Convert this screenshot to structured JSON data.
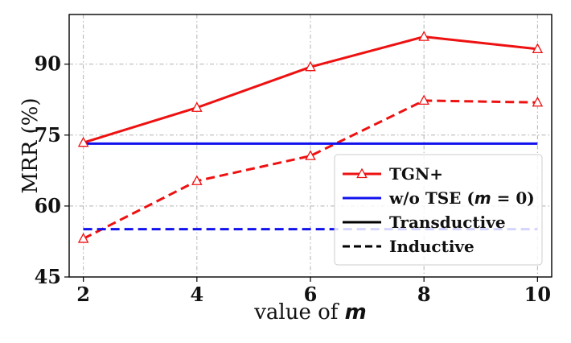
{
  "chart_data": {
    "type": "line",
    "xlabel": "value of ",
    "xlabel_var": "m",
    "ylabel": "MRR (%)",
    "x": [
      2,
      4,
      6,
      8,
      10
    ],
    "xticks": [
      "2",
      "4",
      "6",
      "8",
      "10"
    ],
    "yticks": [
      "45",
      "60",
      "75",
      "90"
    ],
    "xlim": [
      1.75,
      10.25
    ],
    "ylim": [
      45,
      100.5
    ],
    "grid": true,
    "legend_position": "bottom-right",
    "series": [
      {
        "name": "TGN+ (Transductive)",
        "values": [
          73.4,
          80.8,
          89.4,
          95.8,
          93.2
        ],
        "color": "#ee1111",
        "dash": "solid",
        "marker": "triangle"
      },
      {
        "name": "TGN+ (Inductive)",
        "values": [
          53.1,
          65.3,
          70.6,
          82.3,
          81.9
        ],
        "color": "#ee1111",
        "dash": "dashed",
        "marker": "triangle"
      },
      {
        "name": "w/o TSE (Transductive)",
        "values": [
          73.2,
          73.2,
          73.2,
          73.2,
          73.2
        ],
        "color": "#1111ee",
        "dash": "solid",
        "marker": "none"
      },
      {
        "name": "w/o TSE (Inductive)",
        "values": [
          55.1,
          55.1,
          55.1,
          55.1,
          55.1
        ],
        "color": "#1111ee",
        "dash": "dashed",
        "marker": "none"
      }
    ],
    "legend": [
      {
        "label": "TGN+",
        "color": "#ee1111",
        "dash": "solid",
        "marker": "triangle"
      },
      {
        "label_prefix": "w/o TSE (",
        "label_var": "m",
        "label_suffix": " = 0)",
        "color": "#1111ee",
        "dash": "solid",
        "marker": "none"
      },
      {
        "label": "Transductive",
        "color": "#000000",
        "dash": "solid",
        "marker": "none"
      },
      {
        "label": "Inductive",
        "color": "#000000",
        "dash": "dashed",
        "marker": "none"
      }
    ]
  }
}
